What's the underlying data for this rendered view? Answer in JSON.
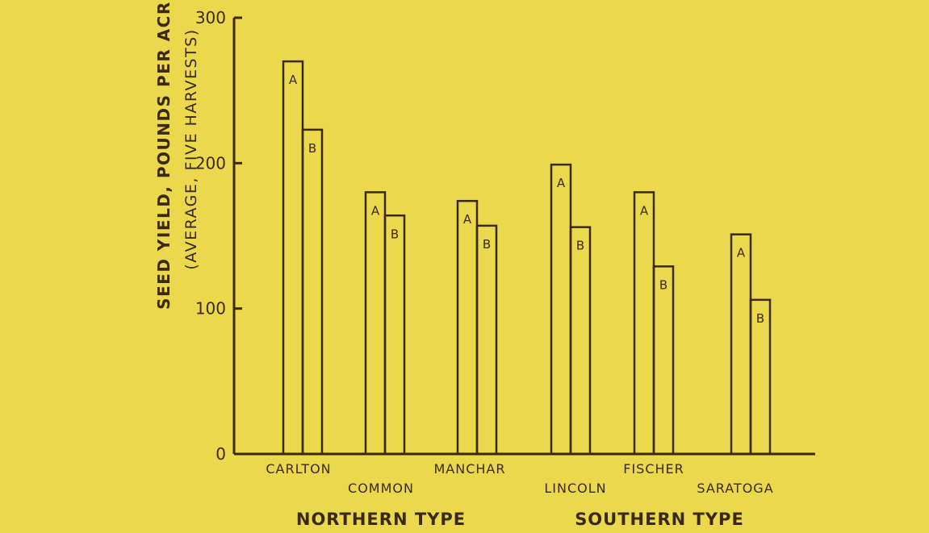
{
  "chart_data": {
    "type": "bar",
    "ylabel": "SEED YIELD, POUNDS PER ACRE",
    "ylabel_sub": "(AVERAGE, FIVE HARVESTS)",
    "ylim": [
      0,
      300
    ],
    "yticks": [
      0,
      100,
      200,
      300
    ],
    "grid": false,
    "categories": [
      "CARLTON",
      "COMMON",
      "MANCHAR",
      "LINCOLN",
      "FISCHER",
      "SARATOGA"
    ],
    "series": [
      {
        "name": "A",
        "values": [
          270,
          180,
          174,
          199,
          180,
          151
        ]
      },
      {
        "name": "B",
        "values": [
          223,
          164,
          157,
          156,
          129,
          106
        ]
      }
    ],
    "groups": [
      {
        "label": "NORTHERN TYPE",
        "categories": [
          "CARLTON",
          "COMMON",
          "MANCHAR"
        ]
      },
      {
        "label": "SOUTHERN TYPE",
        "categories": [
          "LINCOLN",
          "FISCHER",
          "SARATOGA"
        ]
      }
    ],
    "colors": {
      "background": "#ecd84c",
      "ink": "#3a2a14"
    }
  }
}
